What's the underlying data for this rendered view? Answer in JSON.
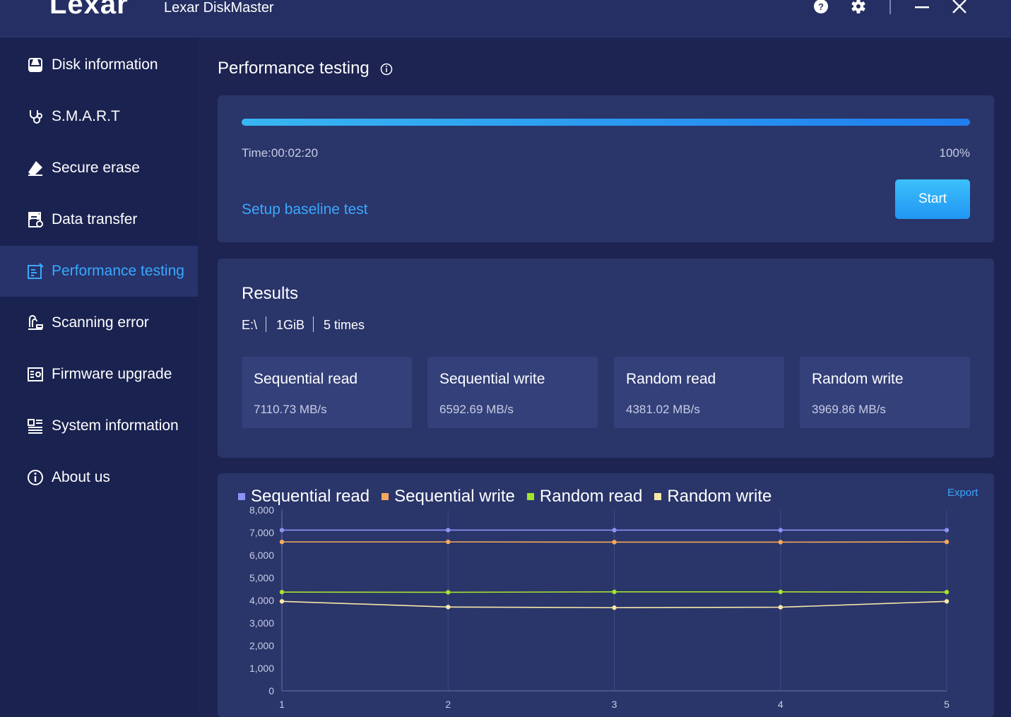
{
  "titlebar": {
    "logo": "Lexar",
    "app_title": "Lexar DiskMaster"
  },
  "sidebar": {
    "items": [
      {
        "label": "Disk information",
        "icon": "disk-icon"
      },
      {
        "label": "S.M.A.R.T",
        "icon": "stethoscope-icon"
      },
      {
        "label": "Secure erase",
        "icon": "eraser-icon"
      },
      {
        "label": "Data transfer",
        "icon": "data-transfer-icon"
      },
      {
        "label": "Performance testing",
        "icon": "performance-icon",
        "active": true
      },
      {
        "label": "Scanning error",
        "icon": "scan-icon"
      },
      {
        "label": "Firmware upgrade",
        "icon": "firmware-icon"
      },
      {
        "label": "System information",
        "icon": "system-info-icon"
      },
      {
        "label": "About us",
        "icon": "info-icon"
      }
    ]
  },
  "main": {
    "title": "Performance testing",
    "progress": {
      "time": "Time:00:02:20",
      "percent_label": "100%",
      "value": 1.0
    },
    "baseline_link": "Setup baseline test",
    "start_button": "Start"
  },
  "results": {
    "title": "Results",
    "drive": "E:\\",
    "size": "1GiB",
    "runs": "5 times",
    "metrics": [
      {
        "name": "Sequential read",
        "value": "7110.73 MB/s"
      },
      {
        "name": "Sequential write",
        "value": "6592.69 MB/s"
      },
      {
        "name": "Random read",
        "value": "4381.02 MB/s"
      },
      {
        "name": "Random write",
        "value": "3969.86 MB/s"
      }
    ]
  },
  "chart": {
    "export_label": "Export"
  },
  "colors": {
    "accent": "#3aa8ff",
    "seq_read": "#8c93f5",
    "seq_write": "#f6a85a",
    "rand_read": "#a4e32e",
    "rand_write": "#f7e8a8"
  },
  "chart_data": {
    "type": "line",
    "x": [
      1,
      2,
      3,
      4,
      5
    ],
    "ylim": [
      0,
      8000
    ],
    "yticks": [
      "0",
      "1,000",
      "2,000",
      "3,000",
      "4,000",
      "5,000",
      "6,000",
      "7,000",
      "8,000"
    ],
    "ytick_values": [
      0,
      1000,
      2000,
      3000,
      4000,
      5000,
      6000,
      7000,
      8000
    ],
    "xticks": [
      "1",
      "2",
      "3",
      "4",
      "5"
    ],
    "grid": true,
    "legend_position": "top-left",
    "series": [
      {
        "name": "Sequential read",
        "color": "#8c93f5",
        "values": [
          7110,
          7110,
          7110,
          7110,
          7110
        ]
      },
      {
        "name": "Sequential write",
        "color": "#f6a85a",
        "values": [
          6590,
          6590,
          6580,
          6580,
          6590
        ]
      },
      {
        "name": "Random read",
        "color": "#a4e32e",
        "values": [
          4370,
          4360,
          4380,
          4380,
          4370
        ]
      },
      {
        "name": "Random write",
        "color": "#f7e8a8",
        "values": [
          3960,
          3710,
          3680,
          3700,
          3960
        ]
      }
    ]
  }
}
